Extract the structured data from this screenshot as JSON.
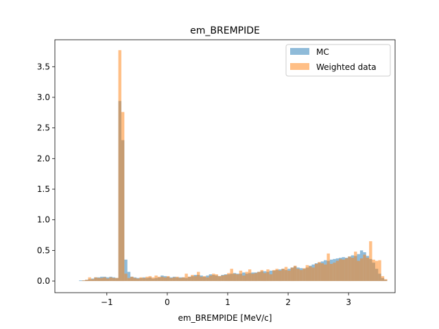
{
  "chart_data": {
    "type": "histogram",
    "title": "em_BREMPIDE",
    "xlabel": "em_BREMPIDE [MeV/c]",
    "ylabel": "",
    "xlim": [
      -1.86,
      3.77
    ],
    "ylim": [
      -0.19,
      3.94
    ],
    "xticks": [
      -1,
      0,
      1,
      2,
      3
    ],
    "xtick_labels": [
      "−1",
      "0",
      "1",
      "2",
      "3"
    ],
    "yticks": [
      0.0,
      0.5,
      1.0,
      1.5,
      2.0,
      2.5,
      3.0,
      3.5
    ],
    "ytick_labels": [
      "0.0",
      "0.5",
      "1.0",
      "1.5",
      "2.0",
      "2.5",
      "3.0",
      "3.5"
    ],
    "grid": false,
    "legend_position": "upper right",
    "bin_edges_start": -1.46,
    "bin_width": 0.05,
    "series": [
      {
        "name": "MC",
        "color": "#1f77b4",
        "opacity": 0.5,
        "values": [
          0.01,
          0.01,
          0.02,
          0.03,
          0.04,
          0.06,
          0.06,
          0.07,
          0.07,
          0.06,
          0.07,
          0.06,
          0.05,
          2.94,
          2.3,
          0.35,
          0.15,
          0.07,
          0.06,
          0.05,
          0.05,
          0.06,
          0.05,
          0.06,
          0.04,
          0.05,
          0.06,
          0.09,
          0.08,
          0.07,
          0.06,
          0.07,
          0.06,
          0.06,
          0.06,
          0.05,
          0.07,
          0.08,
          0.1,
          0.1,
          0.09,
          0.07,
          0.09,
          0.11,
          0.1,
          0.09,
          0.08,
          0.1,
          0.11,
          0.11,
          0.12,
          0.13,
          0.12,
          0.12,
          0.14,
          0.12,
          0.13,
          0.14,
          0.14,
          0.15,
          0.16,
          0.16,
          0.15,
          0.17,
          0.17,
          0.18,
          0.19,
          0.2,
          0.18,
          0.2,
          0.22,
          0.24,
          0.22,
          0.21,
          0.2,
          0.22,
          0.25,
          0.27,
          0.29,
          0.3,
          0.32,
          0.34,
          0.33,
          0.35,
          0.36,
          0.37,
          0.38,
          0.39,
          0.38,
          0.4,
          0.42,
          0.41,
          0.44,
          0.5,
          0.47,
          0.41,
          0.36,
          0.3,
          0.2,
          0.12,
          0.05,
          0.02
        ]
      },
      {
        "name": "Weighted data",
        "color": "#ff7f0e",
        "opacity": 0.5,
        "values": [
          0.0,
          0.01,
          0.02,
          0.06,
          0.03,
          0.06,
          0.05,
          0.05,
          0.06,
          0.04,
          0.06,
          0.05,
          0.05,
          3.77,
          2.76,
          0.12,
          0.05,
          0.07,
          0.05,
          0.04,
          0.06,
          0.05,
          0.07,
          0.08,
          0.06,
          0.09,
          0.07,
          0.07,
          0.06,
          0.08,
          0.05,
          0.06,
          0.07,
          0.05,
          0.06,
          0.12,
          0.07,
          0.1,
          0.08,
          0.15,
          0.07,
          0.08,
          0.06,
          0.09,
          0.12,
          0.11,
          0.08,
          0.09,
          0.1,
          0.13,
          0.2,
          0.12,
          0.11,
          0.17,
          0.09,
          0.15,
          0.19,
          0.12,
          0.13,
          0.15,
          0.18,
          0.13,
          0.19,
          0.11,
          0.18,
          0.2,
          0.17,
          0.2,
          0.23,
          0.17,
          0.22,
          0.25,
          0.2,
          0.18,
          0.21,
          0.26,
          0.24,
          0.22,
          0.28,
          0.31,
          0.29,
          0.27,
          0.45,
          0.28,
          0.3,
          0.33,
          0.36,
          0.35,
          0.37,
          0.4,
          0.38,
          0.48,
          0.33,
          0.37,
          0.43,
          0.38,
          0.65,
          0.35,
          0.33,
          0.34,
          0.08,
          0.03
        ]
      }
    ]
  }
}
